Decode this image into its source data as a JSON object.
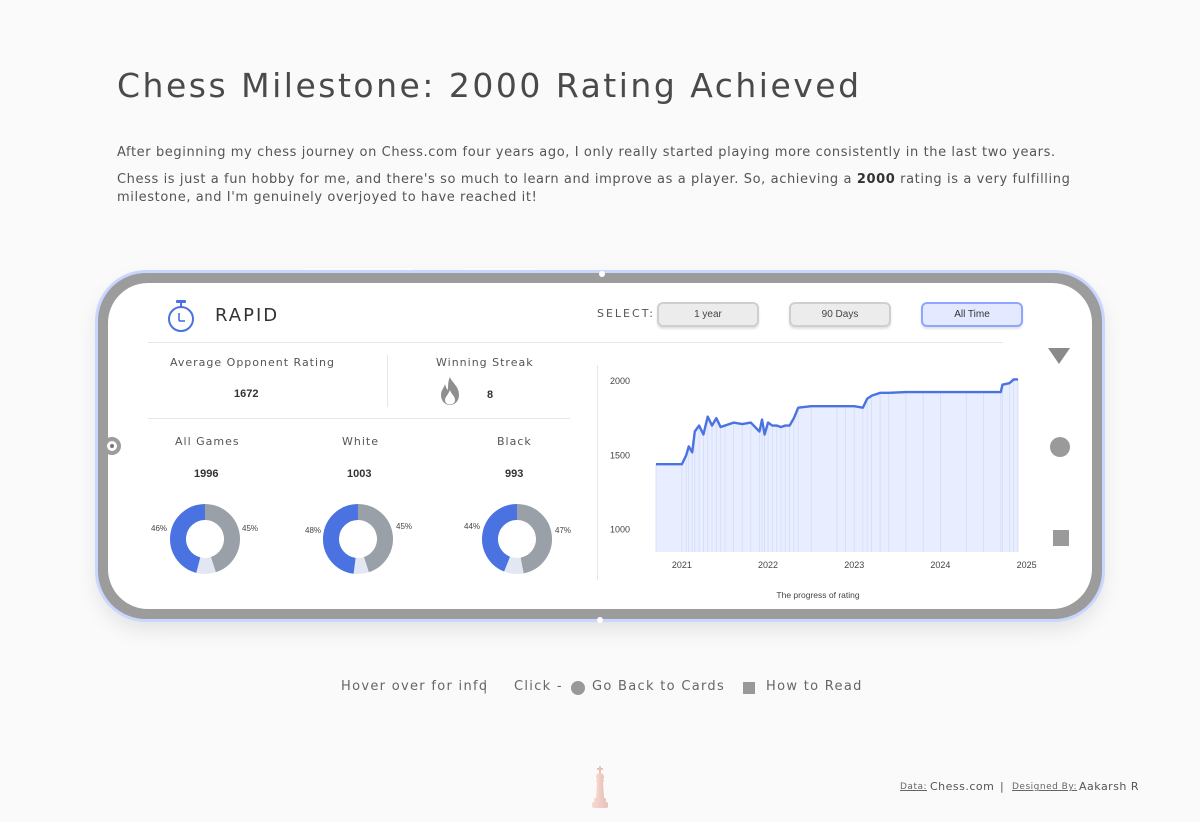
{
  "header": {
    "title": "Chess Milestone: 2000 Rating Achieved",
    "para1": "After beginning my chess journey on Chess.com four years ago, I only really started playing more consistently in the last two years.",
    "para2_pre": "Chess is just a fun hobby for me, and there's so much to learn and improve as a player. So, achieving a ",
    "para2_bold": "2000",
    "para2_post": " rating is a very fulfilling milestone, and I'm genuinely overjoyed to have reached it!"
  },
  "card": {
    "mode_title": "RAPID",
    "mode_icon": "stopwatch-icon",
    "select_label": "SELECT:",
    "range_buttons": [
      "1 year",
      "90 Days",
      "All Time"
    ],
    "active_range": "All Time",
    "avg_opponent_label": "Average Opponent Rating",
    "avg_opponent_value": "1672",
    "streak_label": "Winning Streak",
    "streak_value": "8",
    "streak_icon": "flame-icon",
    "donuts": [
      {
        "label": "All Games",
        "total": "1996",
        "left_pct": "46%",
        "right_pct": "45%",
        "win": 46,
        "loss": 45,
        "draw": 9
      },
      {
        "label": "White",
        "total": "1003",
        "left_pct": "48%",
        "right_pct": "45%",
        "win": 48,
        "loss": 45,
        "draw": 7
      },
      {
        "label": "Black",
        "total": "993",
        "left_pct": "44%",
        "right_pct": "47%",
        "win": 44,
        "loss": 47,
        "draw": 9
      }
    ],
    "side_controls": [
      "triangle-down-icon",
      "circle-icon",
      "square-icon"
    ]
  },
  "chart_data": {
    "type": "line",
    "caption": "The progress of rating",
    "y_ticks": [
      "2000",
      "1500",
      "1000"
    ],
    "x_ticks": [
      "2021",
      "2022",
      "2023",
      "2024",
      "2025"
    ],
    "ylim": [
      850,
      2060
    ],
    "xlim": [
      2020.7,
      2024.9
    ],
    "x": [
      2020.7,
      2021.0,
      2021.05,
      2021.08,
      2021.12,
      2021.15,
      2021.2,
      2021.25,
      2021.3,
      2021.35,
      2021.4,
      2021.45,
      2021.5,
      2021.6,
      2021.7,
      2021.8,
      2021.9,
      2021.93,
      2021.96,
      2022.0,
      2022.05,
      2022.1,
      2022.15,
      2022.2,
      2022.25,
      2022.3,
      2022.35,
      2022.5,
      2022.8,
      2022.9,
      2023.0,
      2023.1,
      2023.15,
      2023.2,
      2023.3,
      2023.4,
      2023.6,
      2023.8,
      2024.0,
      2024.3,
      2024.5,
      2024.7,
      2024.72,
      2024.8,
      2024.85,
      2024.9
    ],
    "y": [
      1440,
      1440,
      1500,
      1560,
      1520,
      1660,
      1700,
      1640,
      1760,
      1700,
      1750,
      1690,
      1700,
      1720,
      1710,
      1720,
      1660,
      1740,
      1640,
      1720,
      1700,
      1700,
      1690,
      1700,
      1700,
      1750,
      1820,
      1830,
      1830,
      1830,
      1830,
      1820,
      1880,
      1900,
      1920,
      1920,
      1925,
      1925,
      1925,
      1925,
      1925,
      1925,
      1975,
      1985,
      2010,
      2010
    ]
  },
  "legend": {
    "hover_text": "Hover over for info",
    "separator": "|",
    "click_text": "Click -",
    "back_text": "Go Back to Cards",
    "read_text": "How to Read"
  },
  "footer": {
    "data_label": "Data:",
    "data_value": "Chess.com",
    "separator": "|",
    "designed_label": "Designed By:",
    "designed_value": "Aakarsh R"
  },
  "colors": {
    "accent": "#4a72e0",
    "loss": "#9aa0a8",
    "draw": "#e3e7f4",
    "area_fill": "#e8eeff"
  }
}
